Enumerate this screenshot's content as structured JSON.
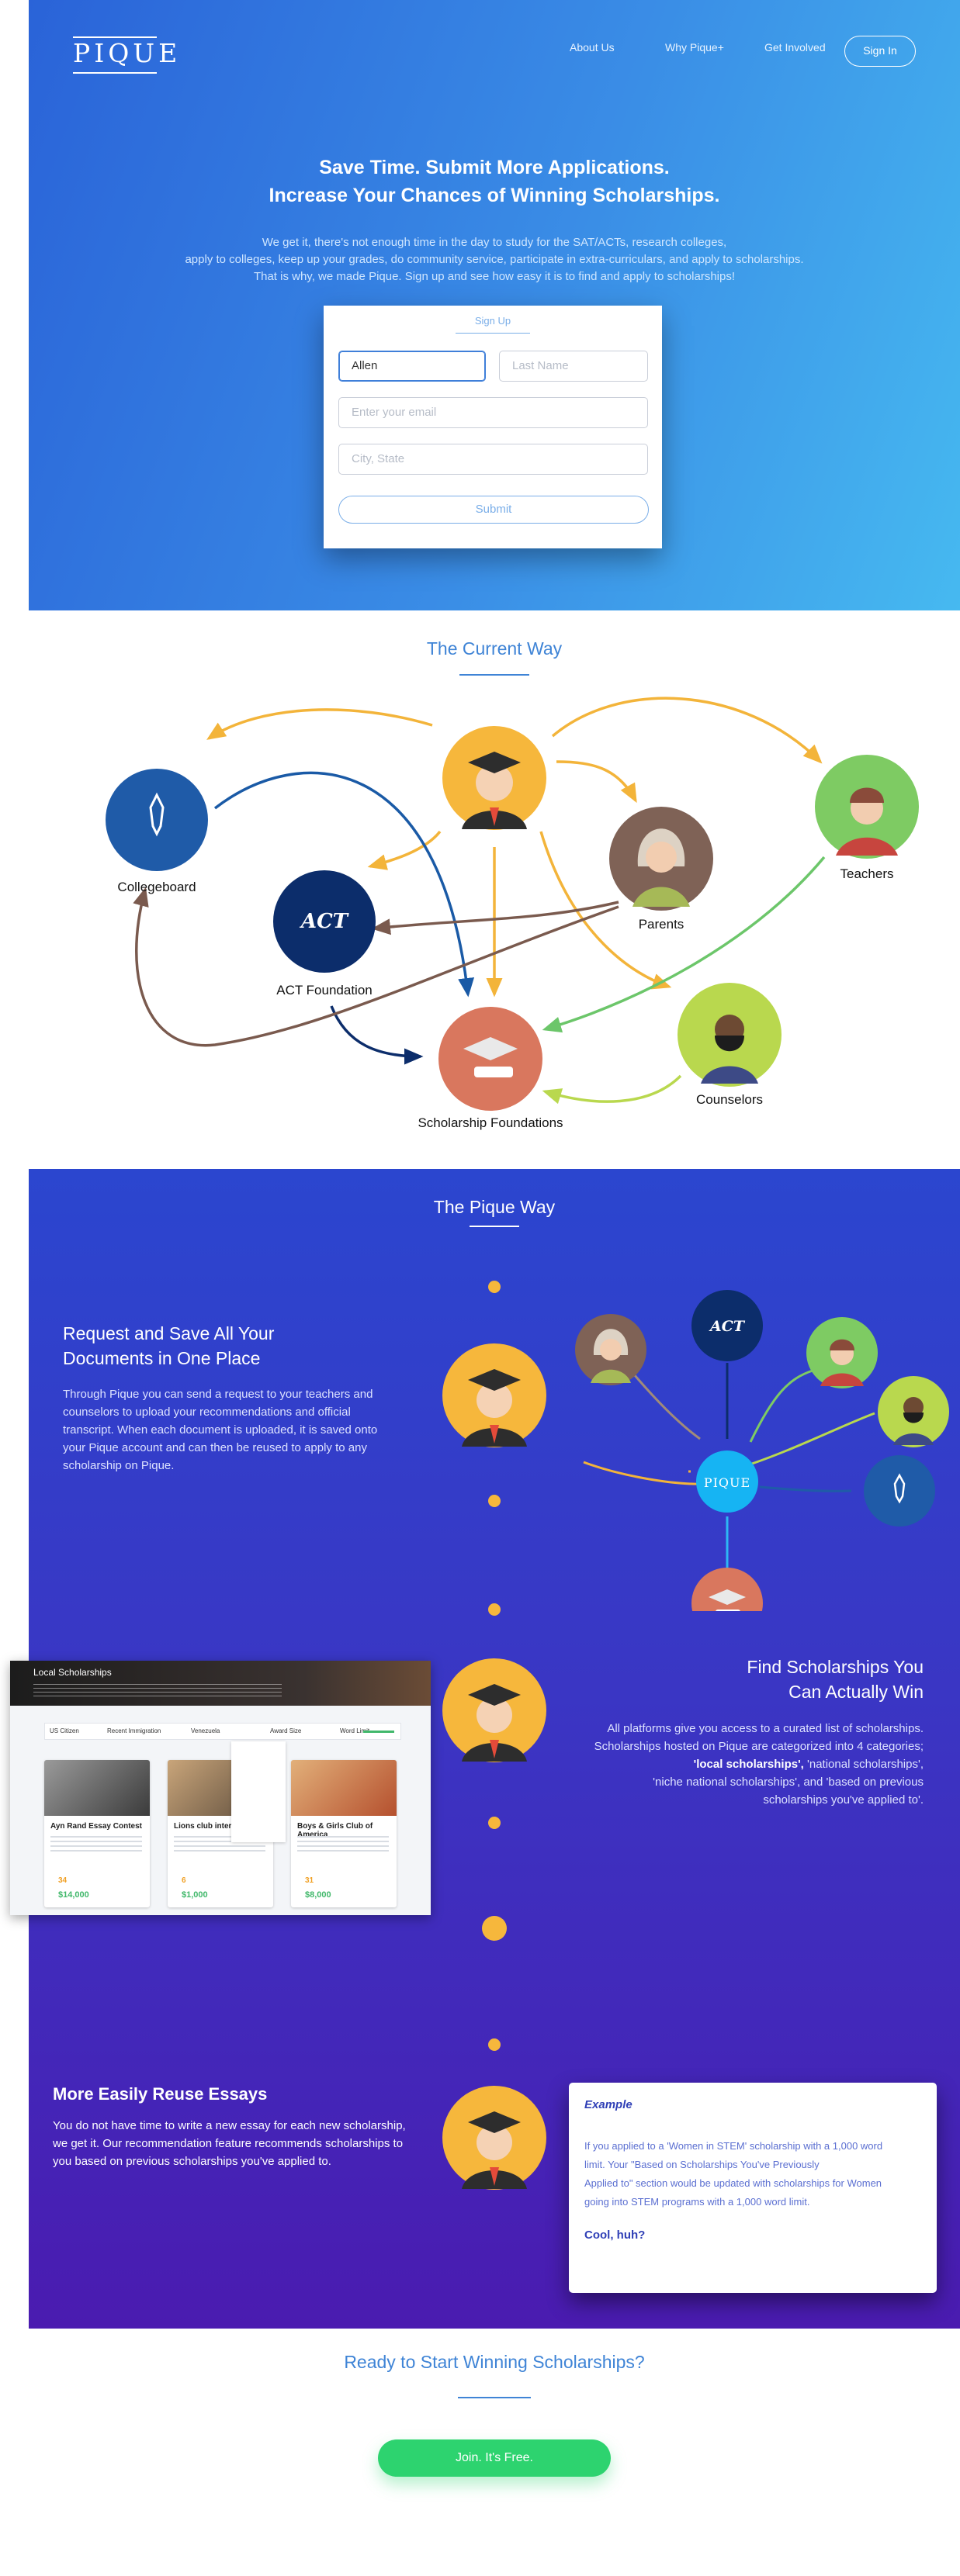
{
  "brand": {
    "logo_text": "PIQUE"
  },
  "nav": {
    "about": "About Us",
    "why": "Why Pique+",
    "involved": "Get Involved",
    "signin": "Sign In"
  },
  "hero": {
    "title_line1": "Save Time. Submit More Applications.",
    "title_line2": "Increase Your Chances of Winning Scholarships.",
    "sub_line1": "We get it, there's not enough time in the day to  study for the SAT/ACTs, research colleges,",
    "sub_line2": "apply to colleges, keep up your grades, do community service, participate in extra-curriculars, and apply to scholarships.",
    "sub_line3": "That is why, we made Pique. Sign up and see how easy it is to find and apply to scholarships!"
  },
  "signup": {
    "tab_label": "Sign Up",
    "first_name_value": "Allen",
    "last_name_placeholder": "Last Name",
    "email_placeholder": "Enter your email",
    "city_placeholder": "City, State",
    "submit_label": "Submit"
  },
  "current_way": {
    "title": "The Current Way",
    "labels": {
      "collegeboard": "Collegeboard",
      "act": "ACT Foundation",
      "parents": "Parents",
      "teachers": "Teachers",
      "counselors": "Counselors",
      "foundations": "Scholarship Foundations"
    }
  },
  "pique_way": {
    "title": "The Pique Way",
    "hub_label": "PIQUE",
    "act_label": "ACT",
    "feature1": {
      "title_line1": "Request and  Save All Your",
      "title_line2": "Documents in One Place",
      "body_lines": [
        "Through Pique you can send a request to your teachers and",
        "counselors to upload your recommendations and official",
        "transcript. When each document is uploaded, it is saved onto",
        "your Pique account and can then be reused to apply to any",
        "scholarship on Pique."
      ]
    },
    "feature2": {
      "title_line1": "Find Scholarships You",
      "title_line2": "Can Actually Win",
      "body_line1": "All platforms give you access to a curated list of scholarships.",
      "body_line2": "Scholarships hosted on Pique are categorized into 4 categories;",
      "body_bold": "'local scholarships',",
      "body_line3_rest": " 'national scholarships',",
      "body_line4": "'niche national scholarships', and 'based on previous",
      "body_line5": "scholarships you've applied to'."
    },
    "feature3": {
      "title": "More Easily Reuse Essays",
      "body_lines": [
        "You do not have time to write a new essay for each new scholarship,",
        "we get it. Our recommendation feature recommends scholarships to",
        "you based on previous scholarships you've applied to."
      ]
    },
    "example": {
      "heading": "Example",
      "body_lines": [
        "If you applied to a 'Women in STEM' scholarship with a 1,000 word",
        "limit. Your \"Based on Scholarships You've Previously",
        "Applied to\" section would be updated with scholarships for Women",
        "going into STEM programs with a 1,000 word limit."
      ],
      "closing": "Cool, huh?"
    }
  },
  "screenshot": {
    "banner_title": "Local Scholarships",
    "filters": [
      "US Citizen",
      "Recent Immigration",
      "Venezuela",
      "Award Size",
      "Word Limit"
    ],
    "cards": [
      {
        "title": "Ayn Rand Essay Contest",
        "count": "34",
        "amount": "$14,000"
      },
      {
        "title": "Lions club international",
        "count": "6",
        "amount": "$1,000"
      },
      {
        "title": "Boys & Girls Club of America",
        "count": "31",
        "amount": "$8,000"
      }
    ]
  },
  "cta": {
    "title": "Ready to Start Winning Scholarships?",
    "button": "Join. It's Free."
  },
  "colors": {
    "accent_blue": "#3f84d6",
    "cta_green": "#2dd36f",
    "gold": "#f6b73c",
    "navy": "#0c2d6b",
    "purple": "#4a1bb0"
  }
}
